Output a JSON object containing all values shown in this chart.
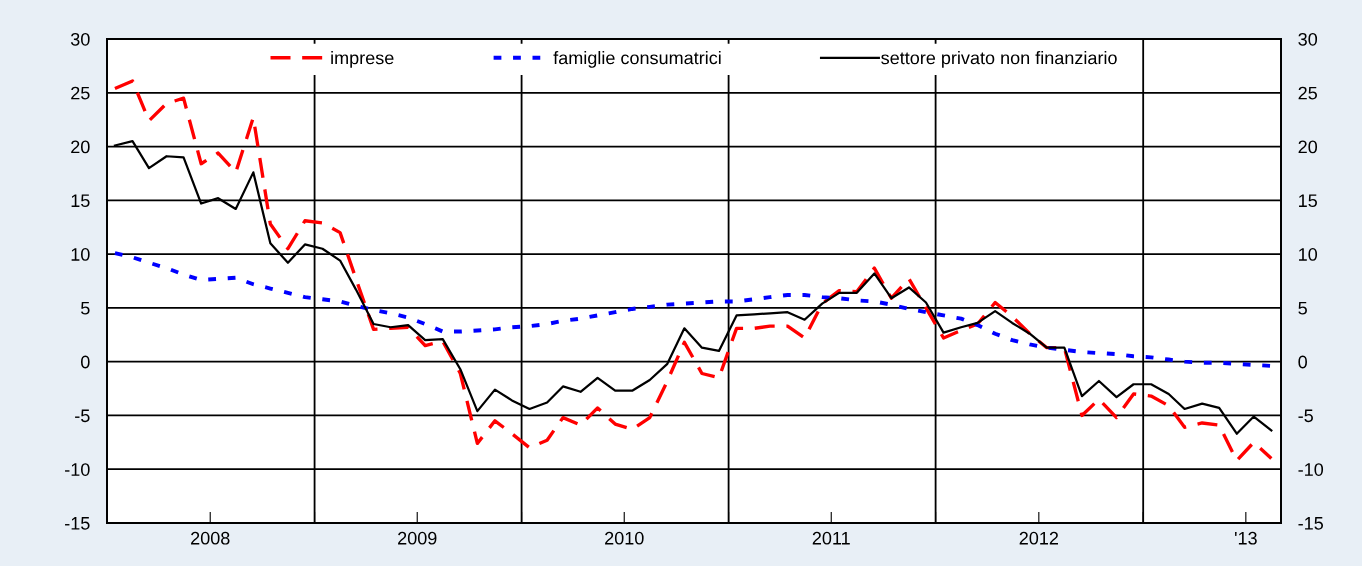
{
  "chart_data": {
    "type": "line",
    "x": [
      "2008-01-15",
      "2008-02-15",
      "2008-03-15",
      "2008-04-15",
      "2008-05-15",
      "2008-06-15",
      "2008-07-15",
      "2008-08-15",
      "2008-09-15",
      "2008-10-15",
      "2008-11-15",
      "2008-12-15",
      "2009-01-15",
      "2009-02-15",
      "2009-03-15",
      "2009-04-15",
      "2009-05-15",
      "2009-06-15",
      "2009-07-15",
      "2009-08-15",
      "2009-09-15",
      "2009-10-15",
      "2009-11-15",
      "2009-12-15",
      "2010-01-15",
      "2010-02-15",
      "2010-03-15",
      "2010-04-15",
      "2010-05-15",
      "2010-06-15",
      "2010-07-15",
      "2010-08-15",
      "2010-09-15",
      "2010-10-15",
      "2010-11-15",
      "2010-12-15",
      "2011-01-15",
      "2011-02-15",
      "2011-03-15",
      "2011-04-15",
      "2011-05-15",
      "2011-06-15",
      "2011-07-15",
      "2011-08-15",
      "2011-09-15",
      "2011-10-15",
      "2011-11-15",
      "2011-12-15",
      "2012-01-15",
      "2012-02-15",
      "2012-03-15",
      "2012-04-15",
      "2012-05-15",
      "2012-06-15",
      "2012-07-15",
      "2012-08-15",
      "2012-09-15",
      "2012-10-15",
      "2012-11-15",
      "2012-12-15",
      "2013-01-15",
      "2013-02-15",
      "2013-03-15",
      "2013-04-15",
      "2013-05-15",
      "2013-06-15",
      "2013-07-15",
      "2013-08-15"
    ],
    "series": [
      {
        "name": "imprese",
        "color": "#ff0000",
        "line_style": "dashed",
        "values": [
          25.4,
          26.1,
          22.4,
          24.0,
          24.5,
          18.4,
          19.4,
          17.6,
          22.7,
          12.8,
          10.5,
          13.1,
          12.9,
          12.0,
          7.7,
          3.0,
          3.1,
          3.2,
          1.5,
          1.9,
          -1.1,
          -7.6,
          -5.5,
          -6.7,
          -8.0,
          -7.3,
          -5.2,
          -5.9,
          -4.3,
          -5.8,
          -6.3,
          -5.2,
          -1.8,
          1.8,
          -1.1,
          -1.5,
          3.1,
          3.1,
          3.3,
          3.3,
          2.2,
          5.4,
          6.6,
          6.5,
          8.7,
          5.9,
          7.7,
          5.0,
          2.2,
          2.9,
          3.5,
          5.5,
          4.2,
          2.6,
          1.3,
          1.3,
          -5.0,
          -3.5,
          -5.2,
          -3.0,
          -3.2,
          -4.1,
          -6.1,
          -5.7,
          -5.9,
          -9.2,
          -7.5,
          -9.0
        ]
      },
      {
        "name": "famiglie consumatrici",
        "color": "#0000ff",
        "line_style": "dotted",
        "values": [
          10.1,
          9.7,
          9.2,
          8.7,
          8.1,
          7.6,
          7.7,
          7.8,
          7.2,
          6.8,
          6.4,
          6.0,
          5.8,
          5.6,
          5.2,
          4.8,
          4.5,
          4.1,
          3.5,
          2.8,
          2.8,
          2.9,
          3.0,
          3.2,
          3.3,
          3.5,
          3.8,
          4.0,
          4.3,
          4.6,
          4.9,
          5.1,
          5.3,
          5.4,
          5.5,
          5.6,
          5.6,
          5.8,
          6.0,
          6.2,
          6.2,
          6.0,
          5.9,
          5.7,
          5.6,
          5.3,
          4.9,
          4.6,
          4.3,
          4.0,
          3.4,
          2.6,
          2.0,
          1.6,
          1.3,
          1.1,
          0.9,
          0.8,
          0.7,
          0.5,
          0.4,
          0.2,
          0.0,
          -0.1,
          -0.1,
          -0.2,
          -0.3,
          -0.4
        ]
      },
      {
        "name": "settore privato non finanziario",
        "color": "#000000",
        "line_style": "solid",
        "values": [
          20.1,
          20.5,
          18.0,
          19.1,
          19.0,
          14.7,
          15.2,
          14.2,
          17.6,
          11.0,
          9.2,
          10.9,
          10.5,
          9.4,
          6.7,
          3.5,
          3.2,
          3.4,
          2.0,
          2.1,
          -0.7,
          -4.6,
          -2.6,
          -3.6,
          -4.4,
          -3.8,
          -2.3,
          -2.8,
          -1.5,
          -2.7,
          -2.7,
          -1.7,
          -0.2,
          3.1,
          1.3,
          1.0,
          4.3,
          4.4,
          4.5,
          4.6,
          3.9,
          5.4,
          6.4,
          6.4,
          8.2,
          5.9,
          6.9,
          5.5,
          2.7,
          3.2,
          3.6,
          4.7,
          3.6,
          2.6,
          1.3,
          1.3,
          -3.2,
          -1.8,
          -3.3,
          -2.1,
          -2.1,
          -3.0,
          -4.4,
          -3.9,
          -4.3,
          -6.7,
          -5.1,
          -6.4
        ]
      }
    ],
    "xlim": [
      "2008-01-01",
      "2013-09-01"
    ],
    "xticks": [
      {
        "value": "2008-07-01",
        "label": "2008"
      },
      {
        "value": "2009-01-01",
        "label": null
      },
      {
        "value": "2009-07-01",
        "label": "2009"
      },
      {
        "value": "2010-01-01",
        "label": null
      },
      {
        "value": "2010-07-01",
        "label": "2010"
      },
      {
        "value": "2011-01-01",
        "label": null
      },
      {
        "value": "2011-07-01",
        "label": "2011"
      },
      {
        "value": "2012-01-01",
        "label": null
      },
      {
        "value": "2012-07-01",
        "label": "2012"
      },
      {
        "value": "2013-01-01",
        "label": null
      },
      {
        "value": "2013-07-01",
        "label": "'13"
      }
    ],
    "ylim": [
      -15,
      30
    ],
    "yticks": [
      -15,
      -10,
      -5,
      0,
      5,
      10,
      15,
      20,
      25,
      30
    ],
    "y2lim": [
      -15,
      30
    ],
    "y2ticks": [
      -15,
      -10,
      -5,
      0,
      5,
      10,
      15,
      20,
      25,
      30
    ],
    "grid": true,
    "legend": "top",
    "marker": "none"
  }
}
